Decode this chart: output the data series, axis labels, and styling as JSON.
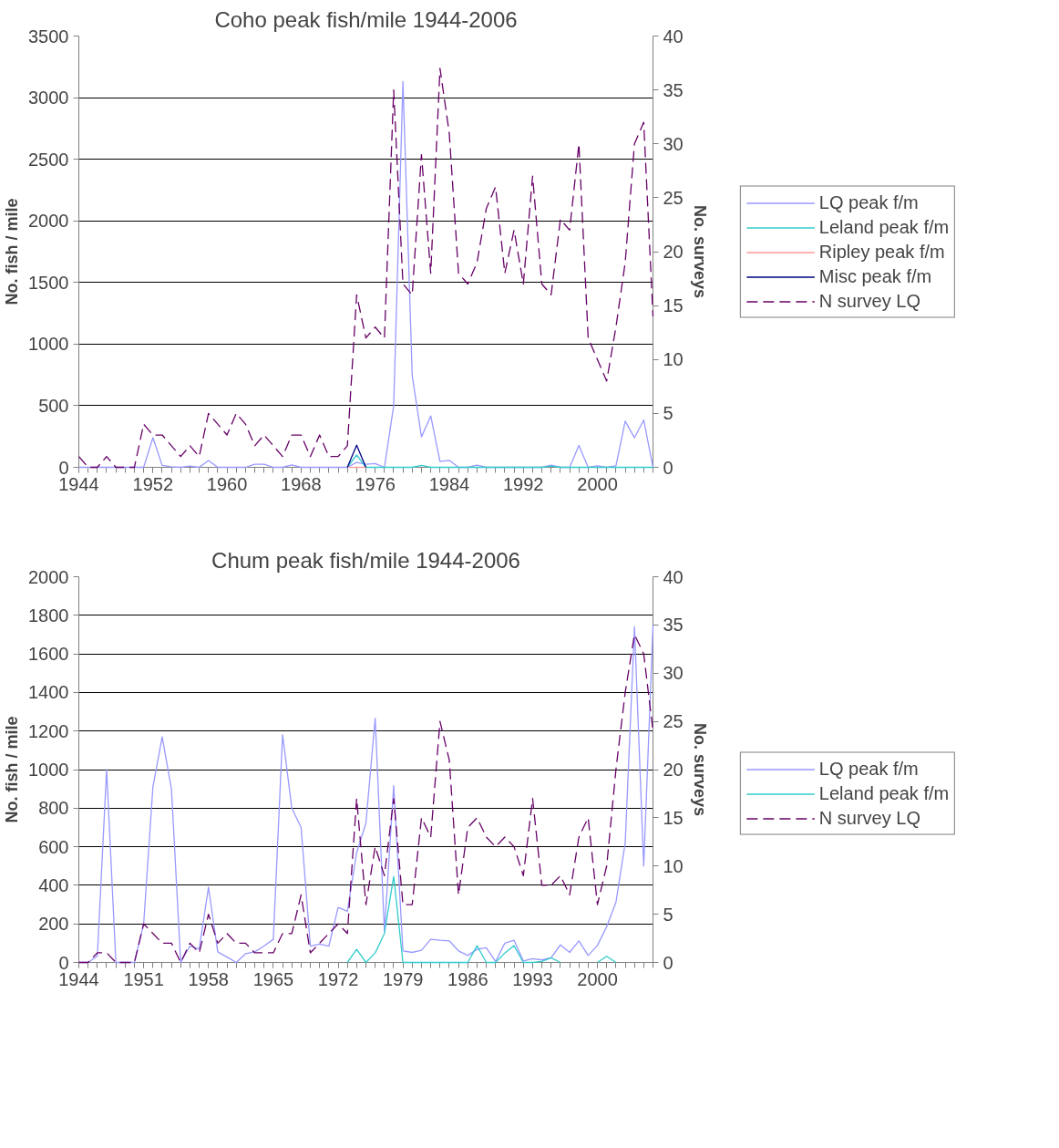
{
  "chart_data": [
    {
      "type": "line",
      "title": "Coho peak fish/mile 1944-2006",
      "ylabel": "No. fish / mile",
      "y2label": "No. surveys",
      "x": [
        1944,
        1945,
        1946,
        1947,
        1948,
        1949,
        1950,
        1951,
        1952,
        1953,
        1954,
        1955,
        1956,
        1957,
        1958,
        1959,
        1960,
        1961,
        1962,
        1963,
        1964,
        1965,
        1966,
        1967,
        1968,
        1969,
        1970,
        1971,
        1972,
        1973,
        1974,
        1975,
        1976,
        1977,
        1978,
        1979,
        1980,
        1981,
        1982,
        1983,
        1984,
        1985,
        1986,
        1987,
        1988,
        1989,
        1990,
        1991,
        1992,
        1993,
        1994,
        1995,
        1996,
        1997,
        1998,
        1999,
        2000,
        2001,
        2002,
        2003,
        2004,
        2005,
        2006
      ],
      "xlim": [
        1944,
        2006
      ],
      "xticks": [
        1944,
        1952,
        1960,
        1968,
        1976,
        1984,
        1992,
        2000
      ],
      "ylim": [
        0,
        3500
      ],
      "yticks": [
        0,
        500,
        1000,
        1500,
        2000,
        2500,
        3000,
        3500
      ],
      "y2lim": [
        0,
        40
      ],
      "y2ticks": [
        0,
        5,
        10,
        15,
        20,
        25,
        30,
        35,
        40
      ],
      "grid": "y",
      "legend": "right",
      "series": [
        {
          "name": "LQ peak f/m",
          "color": "#9999ff",
          "values": [
            0,
            0,
            0,
            0,
            0,
            0,
            0,
            0,
            240,
            15,
            5,
            0,
            10,
            0,
            55,
            0,
            0,
            0,
            0,
            25,
            25,
            0,
            0,
            20,
            0,
            0,
            0,
            0,
            0,
            0,
            40,
            25,
            30,
            0,
            500,
            3130,
            745,
            247,
            417,
            47,
            57,
            0,
            0,
            17,
            0,
            0,
            0,
            0,
            0,
            0,
            0,
            17,
            0,
            0,
            178,
            0,
            12,
            0,
            12,
            375,
            240,
            383,
            0
          ]
        },
        {
          "name": "Leland peak f/m",
          "color": "#33cccc",
          "values": [
            null,
            null,
            null,
            null,
            null,
            null,
            null,
            null,
            null,
            null,
            null,
            null,
            null,
            null,
            null,
            null,
            null,
            null,
            null,
            null,
            null,
            null,
            null,
            null,
            null,
            null,
            null,
            null,
            null,
            0,
            100,
            0,
            0,
            0,
            0,
            0,
            0,
            15,
            0,
            0,
            0,
            0,
            0,
            0,
            0,
            0,
            0,
            0,
            0,
            0,
            0,
            10,
            0,
            0,
            0,
            0,
            0,
            0,
            0,
            0,
            0,
            0,
            0
          ]
        },
        {
          "name": "Ripley peak f/m",
          "color": "#ff9999",
          "values": [
            null,
            null,
            null,
            null,
            null,
            null,
            null,
            null,
            null,
            null,
            null,
            null,
            null,
            null,
            null,
            null,
            null,
            null,
            null,
            null,
            null,
            null,
            null,
            null,
            null,
            null,
            null,
            null,
            null,
            0,
            0,
            0,
            null,
            null,
            null,
            null,
            null,
            null,
            null,
            null,
            null,
            null,
            null,
            null,
            null,
            null,
            null,
            null,
            null,
            null,
            null,
            null,
            null,
            null,
            null,
            null,
            null,
            null,
            null,
            null,
            null,
            null,
            null
          ]
        },
        {
          "name": "Misc peak f/m",
          "color": "#000080",
          "values": [
            null,
            null,
            null,
            null,
            null,
            null,
            null,
            null,
            null,
            null,
            null,
            null,
            null,
            null,
            null,
            null,
            null,
            null,
            null,
            null,
            null,
            null,
            null,
            null,
            null,
            null,
            null,
            null,
            null,
            0,
            180,
            0,
            null,
            null,
            null,
            null,
            null,
            null,
            null,
            null,
            null,
            null,
            null,
            null,
            null,
            null,
            null,
            null,
            null,
            null,
            null,
            null,
            null,
            null,
            null,
            null,
            null,
            null,
            null,
            null,
            null,
            null,
            null
          ]
        },
        {
          "name": "N survey LQ",
          "color": "#660066",
          "axis": "y2",
          "line_style": "dashed",
          "values": [
            1,
            0,
            0,
            1,
            0,
            0,
            0,
            4,
            3,
            3,
            2,
            1,
            2,
            1,
            5,
            4,
            3,
            5,
            4,
            2,
            3,
            2,
            1,
            3,
            3,
            1,
            3,
            1,
            1,
            2,
            16,
            12,
            13,
            12,
            35,
            17,
            16,
            29,
            18,
            37,
            31,
            18,
            17,
            19,
            24,
            26,
            18,
            22,
            17,
            27,
            17,
            16,
            23,
            22,
            30,
            12,
            10,
            8,
            13,
            19,
            30,
            32,
            14
          ]
        }
      ]
    },
    {
      "type": "line",
      "title": "Chum peak fish/mile 1944-2006",
      "ylabel": "No. fish / mile",
      "y2label": "No. surveys",
      "x": [
        1944,
        1945,
        1946,
        1947,
        1948,
        1949,
        1950,
        1951,
        1952,
        1953,
        1954,
        1955,
        1956,
        1957,
        1958,
        1959,
        1960,
        1961,
        1962,
        1963,
        1964,
        1965,
        1966,
        1967,
        1968,
        1969,
        1970,
        1971,
        1972,
        1973,
        1974,
        1975,
        1976,
        1977,
        1978,
        1979,
        1980,
        1981,
        1982,
        1983,
        1984,
        1985,
        1986,
        1987,
        1988,
        1989,
        1990,
        1991,
        1992,
        1993,
        1994,
        1995,
        1996,
        1997,
        1998,
        1999,
        2000,
        2001,
        2002,
        2003,
        2004,
        2005,
        2006
      ],
      "xlim": [
        1944,
        2006
      ],
      "xticks": [
        1944,
        1951,
        1958,
        1965,
        1972,
        1979,
        1986,
        1993,
        2000
      ],
      "ylim": [
        0,
        2000
      ],
      "yticks": [
        0,
        200,
        400,
        600,
        800,
        1000,
        1200,
        1400,
        1600,
        1800,
        2000
      ],
      "y2lim": [
        0,
        40
      ],
      "y2ticks": [
        0,
        5,
        10,
        15,
        20,
        25,
        30,
        35,
        40
      ],
      "grid": "y",
      "legend": "right",
      "series": [
        {
          "name": "LQ peak f/m",
          "color": "#9999ff",
          "values": [
            0,
            0,
            33,
            1000,
            0,
            0,
            0,
            200,
            910,
            1170,
            900,
            0,
            85,
            70,
            390,
            55,
            28,
            0,
            45,
            55,
            85,
            120,
            1180,
            800,
            700,
            85,
            95,
            85,
            285,
            265,
            570,
            722,
            1266,
            162,
            916,
            60,
            52,
            63,
            120,
            115,
            112,
            60,
            36,
            68,
            76,
            5,
            100,
            115,
            8,
            20,
            13,
            24,
            91,
            52,
            112,
            36,
            88,
            186,
            312,
            620,
            1740,
            500,
            1747
          ]
        },
        {
          "name": "Leland peak f/m",
          "color": "#33cccc",
          "values": [
            null,
            null,
            null,
            null,
            null,
            null,
            null,
            null,
            null,
            null,
            null,
            null,
            null,
            null,
            null,
            null,
            null,
            null,
            null,
            null,
            null,
            null,
            null,
            null,
            null,
            null,
            null,
            null,
            null,
            0,
            68,
            0,
            49,
            150,
            446,
            0,
            0,
            0,
            0,
            0,
            0,
            0,
            0,
            87,
            0,
            0,
            49,
            87,
            0,
            0,
            5,
            24,
            0,
            null,
            null,
            null,
            0,
            32,
            0,
            null,
            null,
            null,
            null
          ]
        },
        {
          "name": "N survey LQ",
          "color": "#660066",
          "axis": "y2",
          "line_style": "dashed",
          "values": [
            0,
            0,
            1,
            1,
            0,
            0,
            0,
            4,
            3,
            2,
            2,
            0,
            2,
            1,
            5,
            2,
            3,
            2,
            2,
            1,
            1,
            1,
            3,
            3,
            7,
            1,
            2,
            3,
            4,
            3,
            17,
            6,
            12,
            9,
            17,
            6,
            6,
            15,
            13,
            25,
            21,
            7,
            14,
            15,
            13,
            12,
            13,
            12,
            9,
            17,
            8,
            8,
            9,
            7,
            13,
            15,
            6,
            10,
            20,
            28,
            34,
            32,
            24
          ]
        }
      ]
    }
  ]
}
